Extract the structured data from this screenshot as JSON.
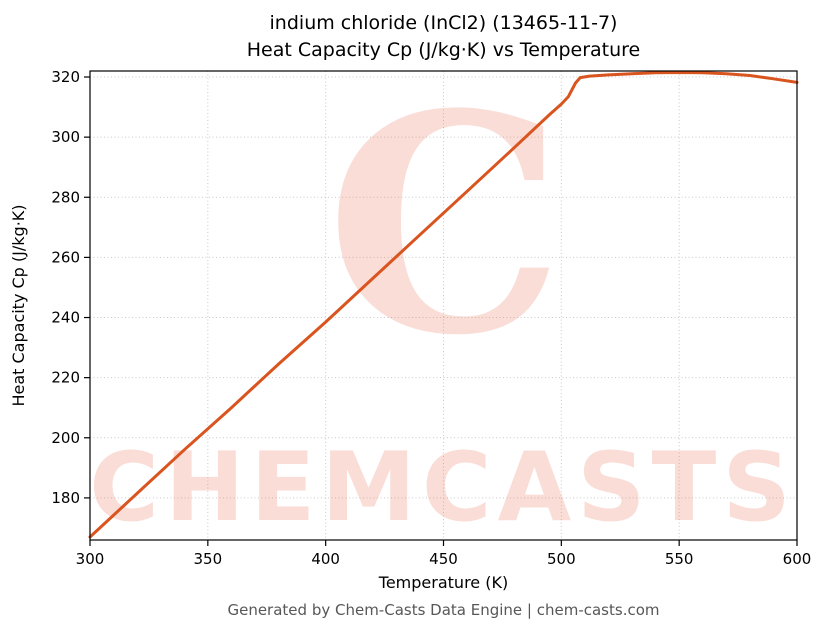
{
  "title": {
    "line1": "indium chloride (InCl2) (13465-11-7)",
    "line2": "Heat Capacity Cp (J/kg·K) vs Temperature"
  },
  "footer": "Generated by Chem-Casts Data Engine | chem-casts.com",
  "watermark": {
    "glyph": "C",
    "text": "CHEMCASTS",
    "color": "#e8765a",
    "opacity": 0.25
  },
  "chart_data": {
    "type": "line",
    "title": "indium chloride (InCl2) (13465-11-7) — Heat Capacity Cp (J/kg·K) vs Temperature",
    "xlabel": "Temperature (K)",
    "ylabel": "Heat Capacity Cp (J/kg·K)",
    "xlim": [
      300,
      600
    ],
    "ylim": [
      166,
      322
    ],
    "xticks": [
      300,
      350,
      400,
      450,
      500,
      550,
      600
    ],
    "yticks": [
      180,
      200,
      220,
      240,
      260,
      280,
      300,
      320
    ],
    "grid": true,
    "legend": "none",
    "line_color": "#d9541f",
    "grid_color": "#c9c9c9",
    "series": [
      {
        "name": "Cp",
        "points": [
          [
            300,
            167.0
          ],
          [
            320,
            181.5
          ],
          [
            340,
            196.0
          ],
          [
            360,
            210.0
          ],
          [
            380,
            224.5
          ],
          [
            400,
            238.5
          ],
          [
            420,
            253.0
          ],
          [
            440,
            267.5
          ],
          [
            460,
            282.0
          ],
          [
            480,
            296.5
          ],
          [
            495,
            307.5
          ],
          [
            500,
            311.0
          ],
          [
            503,
            313.5
          ],
          [
            506,
            318.0
          ],
          [
            508,
            319.8
          ],
          [
            512,
            320.3
          ],
          [
            520,
            320.7
          ],
          [
            530,
            321.1
          ],
          [
            540,
            321.4
          ],
          [
            550,
            321.5
          ],
          [
            560,
            321.4
          ],
          [
            570,
            321.1
          ],
          [
            580,
            320.5
          ],
          [
            590,
            319.4
          ],
          [
            600,
            318.2
          ]
        ]
      }
    ]
  }
}
